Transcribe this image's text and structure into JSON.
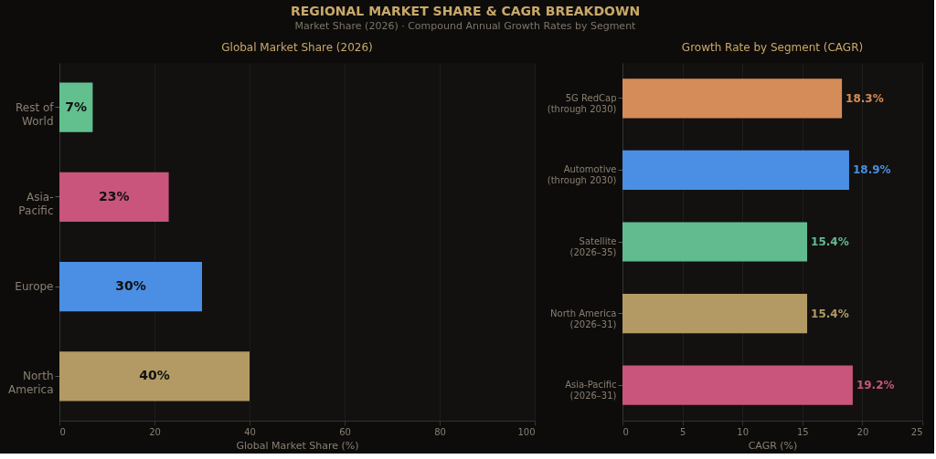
{
  "chart_data": [
    {
      "type": "bar",
      "orientation": "horizontal",
      "title": "Global Market Share (2026)",
      "xlabel": "Global Market Share (%)",
      "annotations": [
        "REGIONAL MARKET SHARE & CAGR BREAKDOWN",
        "Market Share (2026)  ·  Compound Annual Growth Rates by Segment"
      ],
      "categories": [
        "Rest of\nWorld",
        "Asia-\nPacific",
        "Europe",
        "North\nAmerica"
      ],
      "values": [
        7,
        23,
        30,
        40
      ],
      "colors": [
        "#62c08f",
        "#c9557c",
        "#4a8fe3",
        "#b39a64"
      ],
      "value_labels": [
        "7%",
        "23%",
        "30%",
        "40%"
      ],
      "xlim": [
        0,
        100
      ],
      "xticks": [
        0,
        20,
        40,
        60,
        80,
        100
      ],
      "grid": "x",
      "legend": false
    },
    {
      "type": "bar",
      "orientation": "horizontal",
      "title": "Growth Rate by Segment (CAGR)",
      "xlabel": "CAGR (%)",
      "categories": [
        "5G RedCap\n(through 2030)",
        "Automotive\n(through 2030)",
        "Satellite\n(2026–35)",
        "North America\n(2026–31)",
        "Asia-Pacific\n(2026–31)"
      ],
      "values": [
        18.3,
        18.9,
        15.4,
        15.4,
        19.2
      ],
      "colors": [
        "#d68c58",
        "#4a8fe3",
        "#62bb8f",
        "#b39a64",
        "#c9557c"
      ],
      "value_labels": [
        "18.3%",
        "18.9%",
        "15.4%",
        "15.4%",
        "19.2%"
      ],
      "xlim": [
        0,
        25
      ],
      "xticks": [
        0,
        5,
        10,
        15,
        20,
        25
      ],
      "grid": "x",
      "legend": false
    }
  ]
}
